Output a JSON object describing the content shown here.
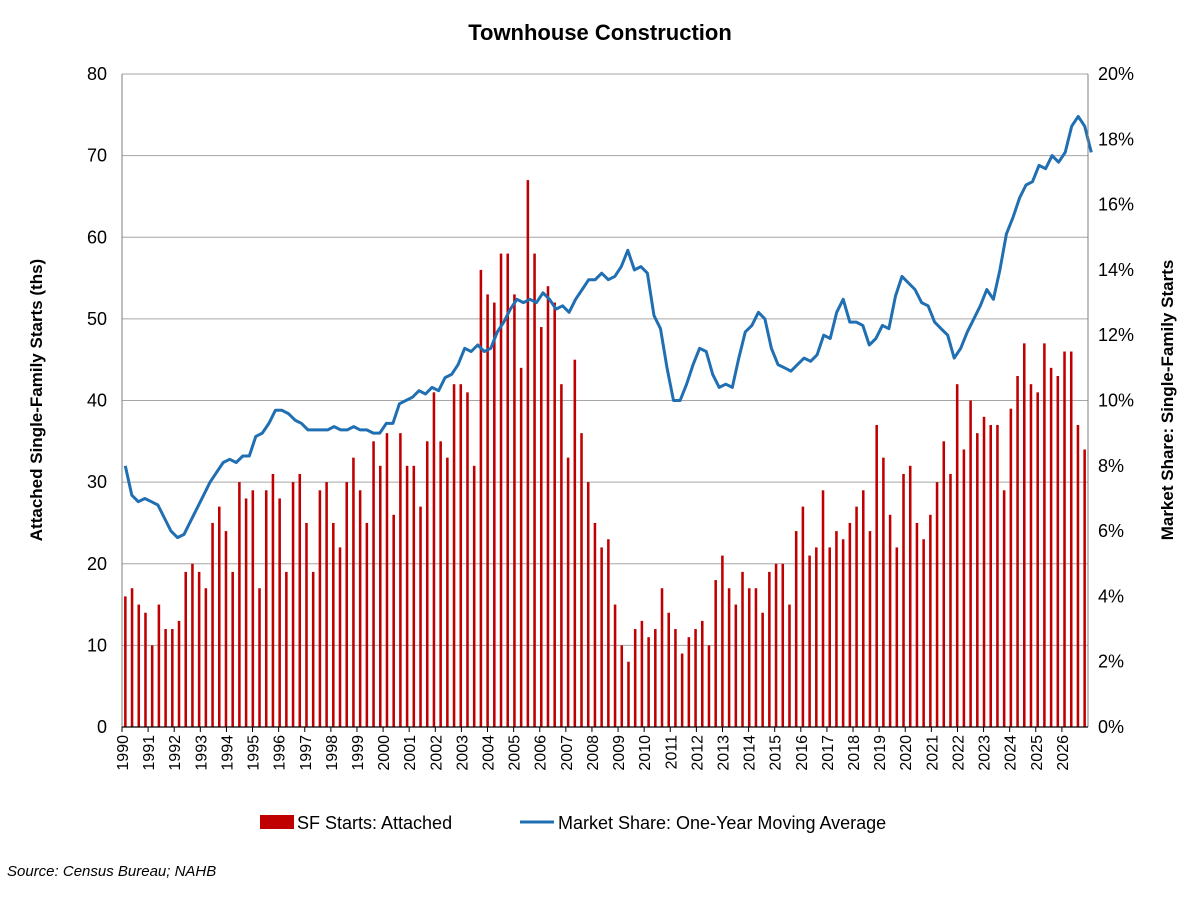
{
  "chart_data": {
    "type": "bar",
    "title": "Townhouse Construction",
    "ylabel": "Attached Single-Family Starts (ths)",
    "y2label": "Market Share: Single-Family Starts",
    "ylim": [
      0,
      80
    ],
    "y2lim": [
      0,
      20
    ],
    "yticks": [
      0,
      10,
      20,
      30,
      40,
      50,
      60,
      70,
      80
    ],
    "y2ticks": [
      "0%",
      "2%",
      "4%",
      "6%",
      "8%",
      "10%",
      "12%",
      "14%",
      "16%",
      "18%",
      "20%"
    ],
    "grid": true,
    "legend_position": "bottom",
    "x_start_year": 1990,
    "x_tick_labels": [
      "1990",
      "1991",
      "1992",
      "1993",
      "1994",
      "1995",
      "1996",
      "1997",
      "1998",
      "1999",
      "2000",
      "2001",
      "2002",
      "2003",
      "2004",
      "2005",
      "2006",
      "2007",
      "2008",
      "2009",
      "2010",
      "2011",
      "2012",
      "2013",
      "2014",
      "2015",
      "2016",
      "2017",
      "2018",
      "2019",
      "2020",
      "2021",
      "2022",
      "2023",
      "2024",
      "2025",
      "2026"
    ],
    "series": [
      {
        "name": "SF Starts: Attached",
        "type": "bar",
        "axis": "left",
        "color": "#c00000",
        "frequency": "quarterly",
        "values": [
          16,
          17,
          15,
          14,
          10,
          15,
          12,
          12,
          13,
          19,
          20,
          19,
          17,
          25,
          27,
          24,
          19,
          30,
          28,
          29,
          17,
          29,
          31,
          28,
          19,
          30,
          31,
          25,
          19,
          29,
          30,
          25,
          22,
          30,
          33,
          29,
          25,
          35,
          32,
          36,
          26,
          36,
          32,
          32,
          27,
          35,
          41,
          35,
          33,
          42,
          42,
          41,
          32,
          56,
          53,
          52,
          58,
          58,
          53,
          44,
          67,
          58,
          49,
          54,
          52,
          42,
          33,
          45,
          36,
          30,
          25,
          22,
          23,
          15,
          10,
          8,
          12,
          13,
          11,
          12,
          17,
          14,
          12,
          9,
          11,
          12,
          13,
          10,
          18,
          21,
          17,
          15,
          19,
          17,
          17,
          14,
          19,
          20,
          20,
          15,
          24,
          27,
          21,
          22,
          29,
          22,
          24,
          23,
          25,
          27,
          29,
          24,
          37,
          33,
          26,
          22,
          31,
          32,
          25,
          23,
          26,
          30,
          35,
          31,
          42,
          34,
          40,
          36,
          38,
          37,
          37,
          29,
          39,
          43,
          47,
          42,
          41,
          47,
          44,
          43,
          46,
          46,
          37,
          34
        ]
      },
      {
        "name": "Market Share: One-Year Moving Average",
        "type": "line",
        "axis": "right",
        "color": "#1f6fb2",
        "unit": "percent",
        "x_start": 1990.125,
        "step": 0.25,
        "values": [
          8.0,
          7.1,
          6.9,
          7.0,
          6.9,
          6.8,
          6.4,
          6.0,
          5.8,
          5.9,
          6.3,
          6.7,
          7.1,
          7.5,
          7.8,
          8.1,
          8.2,
          8.1,
          8.3,
          8.3,
          8.9,
          9.0,
          9.3,
          9.7,
          9.7,
          9.6,
          9.4,
          9.3,
          9.1,
          9.1,
          9.1,
          9.1,
          9.2,
          9.1,
          9.1,
          9.2,
          9.1,
          9.1,
          9.0,
          9.0,
          9.3,
          9.3,
          9.9,
          10.0,
          10.1,
          10.3,
          10.2,
          10.4,
          10.3,
          10.7,
          10.8,
          11.1,
          11.6,
          11.5,
          11.7,
          11.5,
          11.6,
          12.1,
          12.4,
          12.8,
          13.1,
          13.0,
          13.1,
          13.0,
          13.3,
          13.1,
          12.8,
          12.9,
          12.7,
          13.1,
          13.4,
          13.7,
          13.7,
          13.9,
          13.7,
          13.8,
          14.1,
          14.6,
          14.0,
          14.1,
          13.9,
          12.6,
          12.2,
          11.0,
          10.0,
          10.0,
          10.5,
          11.1,
          11.6,
          11.5,
          10.8,
          10.4,
          10.5,
          10.4,
          11.3,
          12.1,
          12.3,
          12.7,
          12.5,
          11.6,
          11.1,
          11.0,
          10.9,
          11.1,
          11.3,
          11.2,
          11.4,
          12.0,
          11.9,
          12.7,
          13.1,
          12.4,
          12.4,
          12.3,
          11.7,
          11.9,
          12.3,
          12.2,
          13.2,
          13.8,
          13.6,
          13.4,
          13.0,
          12.9,
          12.4,
          12.2,
          12.0,
          11.3,
          11.6,
          12.1,
          12.5,
          12.9,
          13.4,
          13.1,
          14.0,
          15.1,
          15.6,
          16.2,
          16.6,
          16.7,
          17.2,
          17.1,
          17.5,
          17.3,
          17.6,
          18.4,
          18.7,
          18.4,
          17.6
        ]
      }
    ],
    "source": "Source: Census Bureau; NAHB"
  }
}
